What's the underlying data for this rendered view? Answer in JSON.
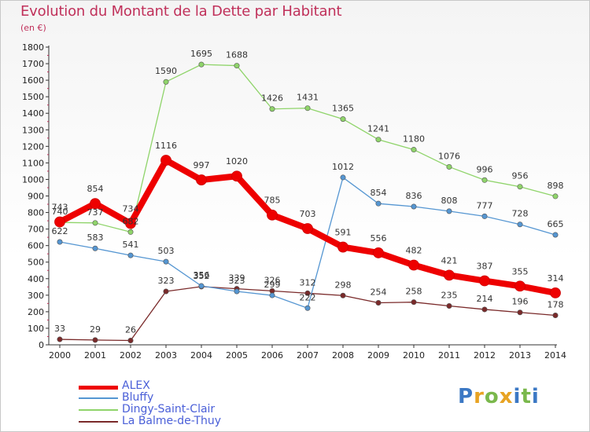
{
  "title": "Evolution du Montant de la Dette par Habitant",
  "subtitle": "(en €)",
  "logo": {
    "letters": [
      "P",
      "r",
      "o",
      "x",
      "i",
      "t",
      "i"
    ],
    "colors": [
      "#3b78c4",
      "#e8a323",
      "#7ab84c",
      "#e8a323",
      "#3b78c4",
      "#7ab84c",
      "#3b78c4"
    ]
  },
  "chart_data": {
    "type": "line",
    "x": [
      "2000",
      "2001",
      "2002",
      "2003",
      "2004",
      "2005",
      "2006",
      "2007",
      "2008",
      "2009",
      "2010",
      "2011",
      "2012",
      "2013",
      "2014"
    ],
    "ylim": [
      0,
      1800
    ],
    "yticks": [
      "0",
      "100",
      "200",
      "300",
      "400",
      "500",
      "600",
      "700",
      "800",
      "900",
      "1000",
      "1100",
      "1200",
      "1300",
      "1400",
      "1500",
      "1600",
      "1700",
      "1800"
    ],
    "grid": false,
    "legend_position": "bottom-left",
    "series": [
      {
        "name": "ALEX",
        "color": "#ee0000",
        "values": [
          743,
          854,
          734,
          1116,
          997,
          1020,
          785,
          703,
          591,
          556,
          482,
          421,
          387,
          355,
          314
        ],
        "labels": [
          "743",
          "854",
          "734",
          "1116",
          "997",
          "1020",
          "785",
          "703",
          "591",
          "556",
          "482",
          "421",
          "387",
          "355",
          "314"
        ]
      },
      {
        "name": "Bluffy",
        "color": "#5596d2",
        "values": [
          622,
          583,
          541,
          503,
          356,
          323,
          299,
          222,
          1012,
          854,
          836,
          808,
          777,
          728,
          665
        ],
        "labels": [
          "622",
          "583",
          "541",
          "503",
          "356",
          "323",
          "299",
          "222",
          "1012",
          "854",
          "836",
          "808",
          "777",
          "728",
          "665"
        ]
      },
      {
        "name": "Dingy-Saint-Clair",
        "color": "#8fd46a",
        "values": [
          740,
          737,
          682,
          1590,
          1695,
          1688,
          1426,
          1431,
          1365,
          1241,
          1180,
          1076,
          996,
          956,
          898
        ],
        "labels": [
          "740",
          "737",
          "682",
          "1590",
          "1695",
          "1688",
          "1426",
          "1431",
          "1365",
          "1241",
          "1180",
          "1076",
          "996",
          "956",
          "898"
        ]
      },
      {
        "name": "La Balme-de-Thuy",
        "color": "#7a2a2a",
        "values": [
          33,
          29,
          26,
          323,
          352,
          339,
          326,
          312,
          298,
          254,
          258,
          235,
          214,
          196,
          178
        ],
        "labels": [
          "33",
          "29",
          "26",
          "323",
          "352",
          "339",
          "326",
          "312",
          "298",
          "254",
          "258",
          "235",
          "214",
          "196",
          "178"
        ]
      }
    ]
  }
}
